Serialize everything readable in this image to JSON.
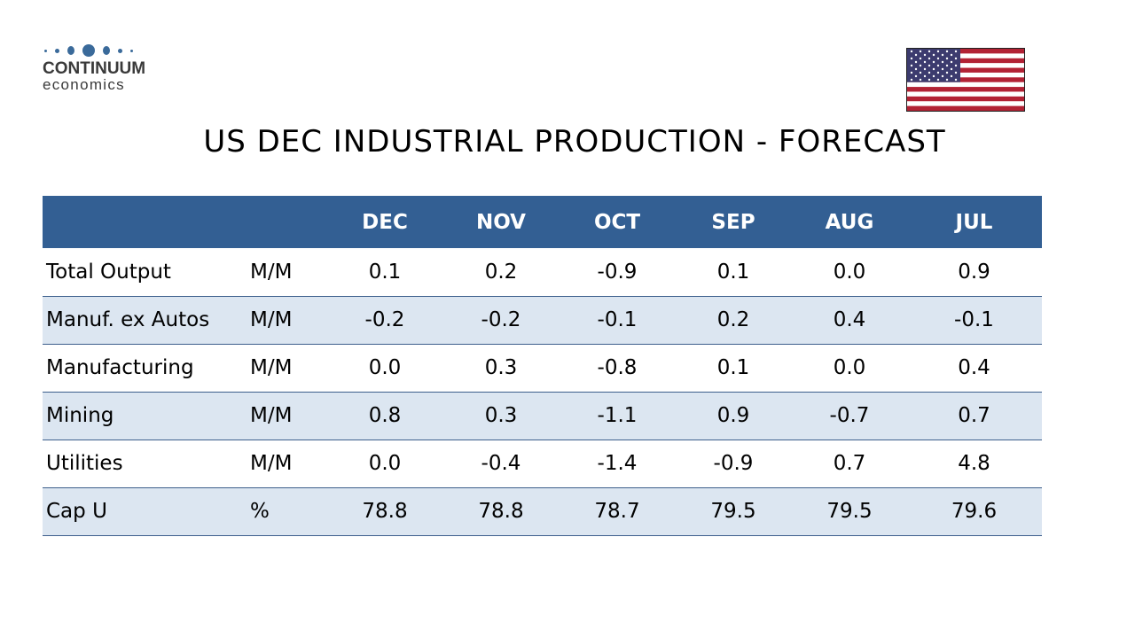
{
  "logo": {
    "brand": "CONTINUUM",
    "tagline": "economics",
    "color": "#3a6a9a"
  },
  "flag": {
    "name": "us-flag-icon"
  },
  "title": "US DEC INDUSTRIAL PRODUCTION - FORECAST",
  "table": {
    "header_color": "#335f93",
    "alt_row_color": "#dce6f1",
    "columns": [
      "",
      "",
      "DEC",
      "NOV",
      "OCT",
      "SEP",
      "AUG",
      "JUL"
    ],
    "rows": [
      {
        "label": "Total Output",
        "unit": "M/M",
        "values": [
          "0.1",
          "0.2",
          "-0.9",
          "0.1",
          "0.0",
          "0.9"
        ]
      },
      {
        "label": "Manuf. ex Autos",
        "unit": "M/M",
        "values": [
          "-0.2",
          "-0.2",
          "-0.1",
          "0.2",
          "0.4",
          "-0.1"
        ]
      },
      {
        "label": "Manufacturing",
        "unit": "M/M",
        "values": [
          "0.0",
          "0.3",
          "-0.8",
          "0.1",
          "0.0",
          "0.4"
        ]
      },
      {
        "label": "Mining",
        "unit": "M/M",
        "values": [
          "0.8",
          "0.3",
          "-1.1",
          "0.9",
          "-0.7",
          "0.7"
        ]
      },
      {
        "label": "Utilities",
        "unit": "M/M",
        "values": [
          "0.0",
          "-0.4",
          "-1.4",
          "-0.9",
          "0.7",
          "4.8"
        ]
      },
      {
        "label": "Cap U",
        "unit": "%",
        "values": [
          "78.8",
          "78.8",
          "78.7",
          "79.5",
          "79.5",
          "79.6"
        ]
      }
    ]
  }
}
